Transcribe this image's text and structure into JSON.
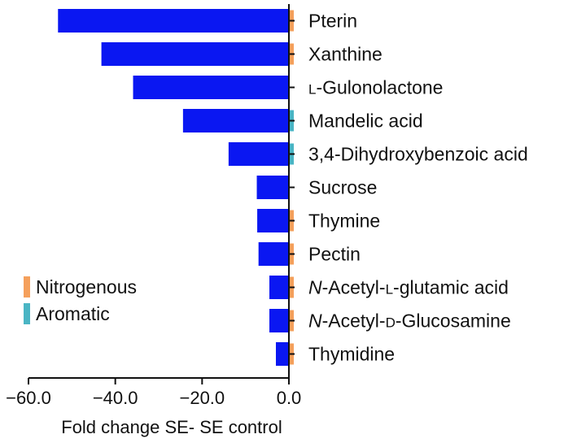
{
  "chart_data": {
    "type": "bar",
    "orientation": "horizontal",
    "xlabel": "Fold change SE- SE control",
    "xlim": [
      -60,
      0
    ],
    "xticks": [
      -60,
      -40,
      -20,
      0
    ],
    "xtick_labels": [
      "−60.0",
      "−40.0",
      "−20.0",
      "0.0"
    ],
    "bar_color": "#0a17f2",
    "categories": [
      "Pterin",
      "Xanthine",
      "L-Gulonolactone",
      "Mandelic acid",
      "3,4-Dihydroxybenzoic acid",
      "Sucrose",
      "Thymine",
      "Pectin",
      "N-Acetyl-L-glutamic acid",
      "N-Acetyl-D-Glucosamine",
      "Thymidine"
    ],
    "label_parts": [
      [
        {
          "t": "Pterin"
        }
      ],
      [
        {
          "t": "Xanthine"
        }
      ],
      [
        {
          "t": "L",
          "sc": true
        },
        {
          "t": "-Gulonolactone"
        }
      ],
      [
        {
          "t": "Mandelic acid"
        }
      ],
      [
        {
          "t": "3,4-Dihydroxybenzoic acid"
        }
      ],
      [
        {
          "t": "Sucrose"
        }
      ],
      [
        {
          "t": "Thymine"
        }
      ],
      [
        {
          "t": "Pectin"
        }
      ],
      [
        {
          "t": "N",
          "i": true
        },
        {
          "t": "-Acetyl-"
        },
        {
          "t": "L",
          "sc": true
        },
        {
          "t": "-glutamic acid"
        }
      ],
      [
        {
          "t": "N",
          "i": true
        },
        {
          "t": "-Acetyl-"
        },
        {
          "t": "D",
          "sc": true
        },
        {
          "t": "-Glucosamine"
        }
      ],
      [
        {
          "t": "Thymidine"
        }
      ]
    ],
    "values": [
      -53.2,
      -43.2,
      -35.9,
      -24.4,
      -13.9,
      -7.4,
      -7.3,
      -7.0,
      -4.5,
      -4.5,
      -3.0
    ],
    "groups": [
      "Nitrogenous",
      "Nitrogenous",
      "none",
      "Aromatic",
      "Aromatic",
      "none",
      "Nitrogenous",
      "Nitrogenous",
      "Nitrogenous",
      "Nitrogenous",
      "Nitrogenous"
    ],
    "legend": {
      "placement": "bottom-left",
      "entries": [
        {
          "label": "Nitrogenous",
          "color": "#f5a05c"
        },
        {
          "label": "Aromatic",
          "color": "#4ab5c4"
        }
      ]
    },
    "grid": false
  }
}
